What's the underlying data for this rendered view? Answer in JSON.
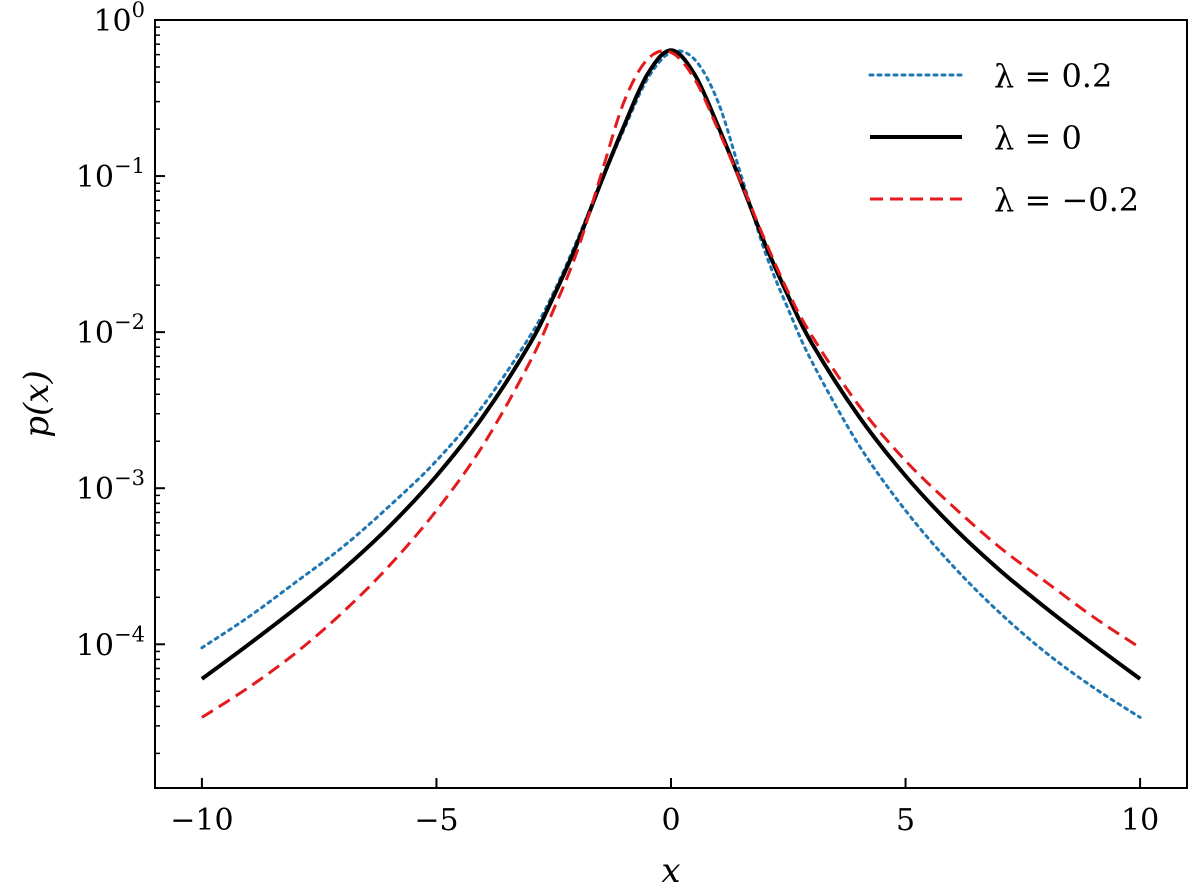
{
  "chart_data": {
    "type": "line",
    "title": "",
    "xlabel": "x",
    "ylabel": "p(x)",
    "xlim": [
      -11,
      11
    ],
    "ylim": [
      1.2e-05,
      1.0
    ],
    "yscale": "log",
    "grid": false,
    "legend_position": "top-right",
    "x_ticks": [
      {
        "value": -10,
        "label": "−10"
      },
      {
        "value": -5,
        "label": "−5"
      },
      {
        "value": 0,
        "label": "0"
      },
      {
        "value": 5,
        "label": "5"
      },
      {
        "value": 10,
        "label": "10"
      }
    ],
    "y_ticks": [
      {
        "value": 0.0001,
        "base": "10",
        "exp": "−4"
      },
      {
        "value": 0.001,
        "base": "10",
        "exp": "−3"
      },
      {
        "value": 0.01,
        "base": "10",
        "exp": "−2"
      },
      {
        "value": 0.1,
        "base": "10",
        "exp": "−1"
      },
      {
        "value": 1,
        "base": "10",
        "exp": "0"
      }
    ],
    "x": [
      -10,
      -9,
      -8,
      -7,
      -6,
      -5,
      -4,
      -3,
      -2.5,
      -2,
      -1.5,
      -1,
      -0.5,
      0,
      0.5,
      1,
      1.5,
      2,
      2.5,
      3,
      4,
      5,
      6,
      7,
      8,
      9,
      10
    ],
    "series": [
      {
        "name": "λ = 0.2",
        "color": "#1f77b4",
        "style": "dotted",
        "values": [
          9.5e-05,
          0.00015,
          0.00025,
          0.00042,
          0.00077,
          0.0015,
          0.0034,
          0.0095,
          0.018,
          0.039,
          0.09,
          0.2,
          0.42,
          0.62,
          0.56,
          0.3,
          0.1,
          0.033,
          0.014,
          0.0065,
          0.0019,
          0.00072,
          0.00032,
          0.00016,
          8.8e-05,
          5.3e-05,
          3.4e-05
        ]
      },
      {
        "name": "λ = 0",
        "color": "#000000",
        "style": "solid",
        "values": [
          6e-05,
          0.0001,
          0.00017,
          0.0003,
          0.00057,
          0.0012,
          0.0029,
          0.0085,
          0.017,
          0.037,
          0.09,
          0.21,
          0.45,
          0.64,
          0.45,
          0.21,
          0.09,
          0.037,
          0.017,
          0.0085,
          0.0029,
          0.0012,
          0.00057,
          0.0003,
          0.00017,
          0.0001,
          6e-05
        ]
      },
      {
        "name": "λ = −0.2",
        "color": "#e41a1c",
        "style": "dashed",
        "values": [
          3.4e-05,
          5.3e-05,
          8.8e-05,
          0.00016,
          0.00032,
          0.00072,
          0.0019,
          0.0065,
          0.014,
          0.033,
          0.1,
          0.3,
          0.56,
          0.62,
          0.42,
          0.2,
          0.09,
          0.039,
          0.018,
          0.0095,
          0.0034,
          0.0015,
          0.00077,
          0.00042,
          0.00025,
          0.00015,
          9.5e-05
        ]
      }
    ]
  }
}
